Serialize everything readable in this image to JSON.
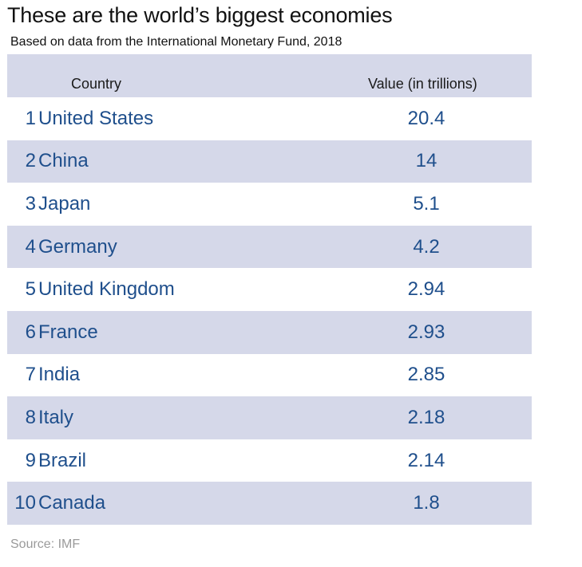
{
  "title": "These are the world’s biggest economies",
  "subtitle": "Based on data from the International Monetary Fund, 2018",
  "source": "Source: IMF",
  "colors": {
    "row_shade": "#d5d8e9",
    "text_accent": "#1f4f8c"
  },
  "chart_data": {
    "type": "table",
    "title": "These are the world’s biggest economies",
    "subtitle": "Based on data from the International Monetary Fund, 2018",
    "columns": [
      "Country",
      "Value (in trillions)"
    ],
    "rows": [
      {
        "rank": "1",
        "country": "United States",
        "value": "20.4"
      },
      {
        "rank": "2",
        "country": "China",
        "value": "14"
      },
      {
        "rank": "3",
        "country": "Japan",
        "value": "5.1"
      },
      {
        "rank": "4",
        "country": "Germany",
        "value": "4.2"
      },
      {
        "rank": "5",
        "country": "United Kingdom",
        "value": "2.94"
      },
      {
        "rank": "6",
        "country": "France",
        "value": "2.93"
      },
      {
        "rank": "7",
        "country": "India",
        "value": "2.85"
      },
      {
        "rank": "8",
        "country": "Italy",
        "value": "2.18"
      },
      {
        "rank": "9",
        "country": "Brazil",
        "value": "2.14"
      },
      {
        "rank": "10",
        "country": "Canada",
        "value": "1.8"
      }
    ]
  }
}
